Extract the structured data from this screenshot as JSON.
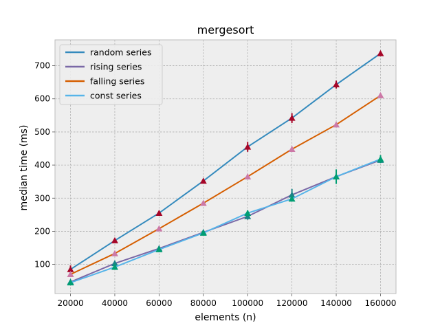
{
  "chart_data": {
    "type": "line",
    "title": "mergesort",
    "xlabel": "elements (n)",
    "ylabel": "median time (ms)",
    "x": [
      20000,
      40000,
      60000,
      80000,
      100000,
      120000,
      140000,
      160000
    ],
    "x_ticks": [
      20000,
      40000,
      60000,
      80000,
      100000,
      120000,
      140000,
      160000
    ],
    "y_ticks": [
      100,
      200,
      300,
      400,
      500,
      600,
      700
    ],
    "xlim": [
      13000,
      167000
    ],
    "ylim": [
      12,
      778
    ],
    "grid": true,
    "legend_position": "top-left",
    "series": [
      {
        "name": "random series",
        "color": "#348ABD",
        "marker_color": "#A60628",
        "values": [
          85,
          172,
          255,
          352,
          455,
          542,
          643,
          737
        ],
        "err": [
          12,
          5,
          5,
          5,
          15,
          15,
          12,
          8
        ]
      },
      {
        "name": "rising series",
        "color": "#7A68A6",
        "marker_color": "#188487",
        "values": [
          47,
          103,
          148,
          197,
          245,
          310,
          365,
          415
        ],
        "err": [
          3,
          8,
          8,
          3,
          10,
          18,
          8,
          6
        ]
      },
      {
        "name": "falling series",
        "color": "#D55E00",
        "marker_color": "#CC79A7",
        "values": [
          70,
          133,
          208,
          285,
          365,
          448,
          522,
          610
        ],
        "err": [
          6,
          4,
          4,
          3,
          3,
          8,
          3,
          8
        ]
      },
      {
        "name": "const series",
        "color": "#56B4E9",
        "marker_color": "#009E73",
        "values": [
          45,
          92,
          145,
          195,
          255,
          298,
          365,
          418
        ],
        "err": [
          3,
          4,
          8,
          3,
          8,
          6,
          22,
          12
        ]
      }
    ]
  }
}
